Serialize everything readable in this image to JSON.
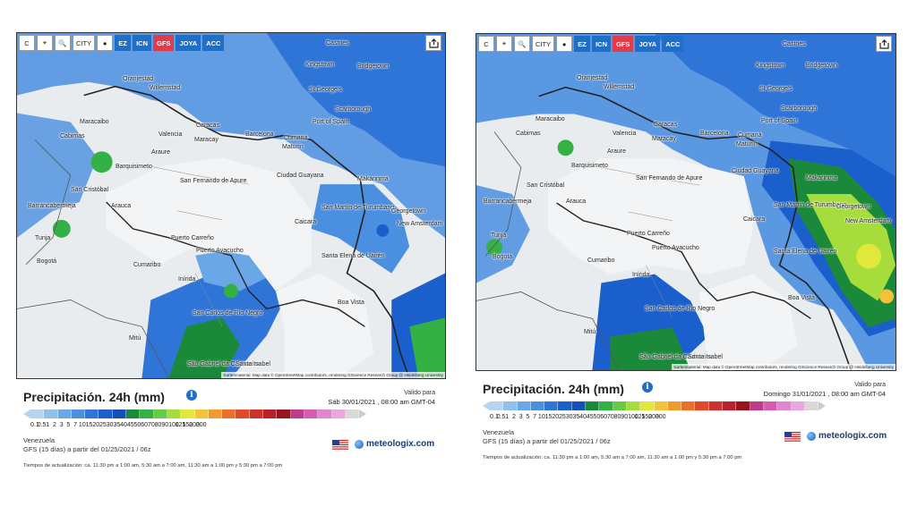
{
  "toolbar": {
    "buttons": [
      "C",
      "⌖",
      "🔍",
      "CITY",
      "●"
    ],
    "models": [
      "EZ",
      "ICN",
      "GFS",
      "JOYA",
      "ACC"
    ],
    "active_model": "GFS"
  },
  "legend": {
    "title": "Precipitación. 24h (mm)",
    "ticks": [
      "0.1",
      "0.5",
      "1",
      "2",
      "3",
      "5",
      "7",
      "10",
      "15",
      "20",
      "25",
      "30",
      "35",
      "40",
      "45",
      "50",
      "60",
      "70",
      "80",
      "90",
      "100",
      "125",
      "150",
      "200",
      "300"
    ],
    "colors": [
      "#b5d4ef",
      "#8fbfeb",
      "#6aa7e6",
      "#4a8fe0",
      "#2f75d8",
      "#1b5fcc",
      "#164fb8",
      "#1a8a3a",
      "#33b145",
      "#66cc44",
      "#a6dd3c",
      "#e2e83a",
      "#f2c23a",
      "#f09a2f",
      "#ea6f2a",
      "#df4a2a",
      "#d0302c",
      "#b8202a",
      "#9a1420",
      "#c03a8a",
      "#d55bb5",
      "#e086d0",
      "#e8a8df",
      "#d9d9d9"
    ],
    "valid_for_label": "Valido para",
    "region": "Venezuela",
    "update_times": "Tiempos de actualización: ca. 11:30 pm a 1:00 am, 5:30 am a 7:00 am, 11:30 am a 1:00 pm y 5:30 pm a 7:00 pm",
    "brand": "meteologix.com"
  },
  "maps": [
    {
      "valid_date": "Sáb 30/01/2021 , 08:00 am GMT-04",
      "model_run": "GFS (15 días) a partir del 01/25/2021 / 06z",
      "attribution": "Kartenmaterial: Map data © OpenStreetMap contributors, rendering GIScience Research Group @ Heidelberg University",
      "cities": [
        "Castries",
        "Kingstown",
        "Bridgetown",
        "Oranjestad",
        "Willemstad",
        "St George's",
        "Scarborough",
        "Port of Spain",
        "Maracaibo",
        "Caracas",
        "Valencia",
        "Maracay",
        "Barcelona",
        "Cumaná",
        "Maturín",
        "Araure",
        "Barquisimeto",
        "Cabimas",
        "San Cristóbal",
        "Barrancabermeja",
        "Arauca",
        "San Fernando de Apure",
        "Ciudad Guayana",
        "Makarinma",
        "San Martín de Turumbang",
        "Georgetown",
        "New Amsterdam",
        "Tunja",
        "Bogotá",
        "Puerto Carreño",
        "Cumaribo",
        "Inírida",
        "Puerto Ayacucho",
        "Caicara",
        "Santa Elena de Uairén",
        "Boa Vista",
        "San Carlos de Río Negro",
        "Mitú",
        "São Gabriel da Cachoeira",
        "Santa Isabel"
      ]
    },
    {
      "valid_date": "Domingo 31/01/2021 , 08:00 am GMT-04",
      "model_run": "GFS (15 días) a partir del 01/25/2021 / 06z",
      "attribution": "Kartenmaterial: Map data © OpenStreetMap contributors, rendering GIScience Research Group @ Heidelberg University",
      "cities": [
        "Castries",
        "Kingstown",
        "Bridgetown",
        "Oranjestad",
        "Willemstad",
        "St George's",
        "Scarborough",
        "Port of Spain",
        "Maracaibo",
        "Caracas",
        "Valencia",
        "Maracay",
        "Barcelona",
        "Cumaná",
        "Maturín",
        "Araure",
        "Barquisimeto",
        "Cabimas",
        "San Cristóbal",
        "Barrancabermeja",
        "Arauca",
        "San Fernando de Apure",
        "Ciudad Guayana",
        "Makarinma",
        "San Martín de Turumbang",
        "Georgetown",
        "New Amsterdam",
        "Tunja",
        "Bogotá",
        "Puerto Carreño",
        "Cumaribo",
        "Inírida",
        "Puerto Ayacucho",
        "Caicara",
        "Santa Elena de Uairén",
        "Boa Vista",
        "San Carlos de Río Negro",
        "Mitú",
        "São Gabriel da Cachoeira",
        "Santa Isabel"
      ]
    }
  ]
}
